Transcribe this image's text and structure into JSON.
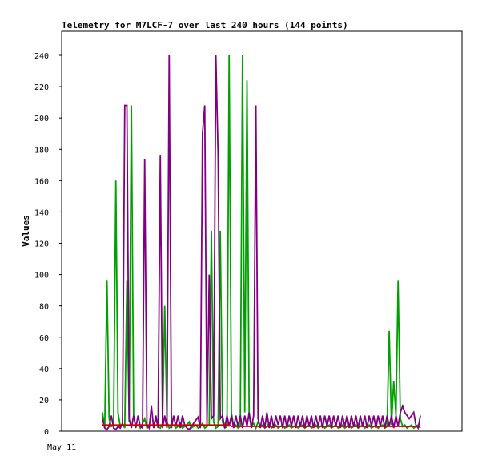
{
  "chart_data": {
    "type": "line",
    "title": "Telemetry for M7LCF-7 over last 240 hours (144 points)",
    "xlabel": "",
    "ylabel": "Values",
    "ylim": [
      0,
      240
    ],
    "yticks": [
      0,
      20,
      40,
      60,
      80,
      100,
      120,
      140,
      160,
      180,
      200,
      220,
      240
    ],
    "xtick_label": "May 11",
    "grid": false,
    "legend": "none",
    "series": [
      {
        "color": "#00a000",
        "values": [
          12,
          2,
          96,
          8,
          3,
          4,
          160,
          12,
          3,
          5,
          2,
          96,
          6,
          208,
          10,
          3,
          4,
          2,
          5,
          8,
          2,
          3,
          4,
          3,
          8,
          3,
          2,
          5,
          80,
          6,
          2,
          3,
          4,
          2,
          3,
          5,
          2,
          3,
          4,
          6,
          2,
          3,
          4,
          2,
          3,
          5,
          2,
          3,
          4,
          128,
          6,
          2,
          3,
          128,
          6,
          2,
          3,
          240,
          12,
          3,
          4,
          2,
          3,
          240,
          12,
          224,
          10,
          3,
          5,
          2,
          6,
          3,
          4,
          2,
          3,
          5,
          2,
          3,
          4,
          2,
          3,
          4,
          2,
          3,
          4,
          2,
          3,
          4,
          2,
          3,
          4,
          2,
          3,
          4,
          2,
          3,
          4,
          2,
          3,
          4,
          2,
          3,
          4,
          2,
          3,
          4,
          2,
          3,
          4,
          2,
          3,
          4,
          2,
          3,
          4,
          2,
          3,
          4,
          2,
          3,
          4,
          2,
          3,
          4,
          2,
          3,
          4,
          2,
          3,
          64,
          4,
          32,
          10,
          96,
          8,
          3,
          4,
          2,
          3,
          4,
          2,
          3,
          4,
          2
        ]
      },
      {
        "color": "#800080",
        "values": [
          8,
          2,
          1,
          3,
          10,
          2,
          1,
          3,
          2,
          5,
          208,
          208,
          8,
          2,
          10,
          2,
          10,
          3,
          2,
          174,
          4,
          2,
          16,
          2,
          10,
          2,
          176,
          2,
          10,
          2,
          240,
          2,
          10,
          3,
          10,
          2,
          10,
          4,
          2,
          1,
          3,
          5,
          7,
          9,
          2,
          190,
          208,
          4,
          100,
          8,
          10,
          240,
          176,
          8,
          10,
          2,
          10,
          3,
          10,
          2,
          10,
          3,
          10,
          2,
          10,
          3,
          12,
          2,
          10,
          208,
          8,
          2,
          10,
          2,
          12,
          2,
          10,
          2,
          10,
          4,
          10,
          2,
          10,
          2,
          10,
          3,
          10,
          2,
          10,
          3,
          10,
          2,
          10,
          3,
          10,
          2,
          10,
          3,
          10,
          2,
          10,
          3,
          10,
          2,
          10,
          3,
          10,
          2,
          10,
          3,
          10,
          2,
          10,
          3,
          10,
          2,
          10,
          3,
          10,
          2,
          10,
          3,
          10,
          2,
          10,
          3,
          10,
          2,
          10,
          3,
          10,
          2,
          10,
          3,
          12,
          16,
          12,
          10,
          8,
          10,
          12,
          4,
          2,
          10
        ]
      },
      {
        "color": "#cc0000",
        "values": [
          4,
          4,
          4,
          4,
          4,
          4,
          4,
          4,
          4,
          4,
          4,
          4,
          4,
          4,
          4,
          4,
          4,
          4,
          4,
          4,
          4,
          4,
          4,
          4,
          4,
          4,
          4,
          4,
          4,
          4,
          4,
          4,
          4,
          4,
          4,
          4,
          4,
          4,
          4,
          4,
          4,
          4,
          4,
          4,
          4,
          4,
          4,
          4,
          4,
          4,
          4,
          4,
          4,
          4,
          4,
          4,
          4,
          4,
          3,
          3,
          3,
          3,
          3,
          3,
          3,
          3,
          3,
          3,
          3,
          3,
          3,
          3,
          3,
          3,
          3,
          3,
          3,
          3,
          3,
          3,
          3,
          3,
          3,
          3,
          3,
          3,
          3,
          3,
          3,
          3,
          3,
          3,
          3,
          3,
          3,
          3,
          3,
          3,
          3,
          3,
          3,
          3,
          3,
          3,
          3,
          3,
          3,
          3,
          3,
          3,
          3,
          3,
          3,
          3,
          3,
          3,
          3,
          3,
          3,
          3,
          3,
          3,
          3,
          3,
          3,
          3,
          3,
          3,
          3,
          3,
          3,
          3,
          3,
          3,
          3,
          3,
          3,
          3,
          3,
          3,
          3,
          3,
          3,
          3
        ]
      }
    ]
  }
}
